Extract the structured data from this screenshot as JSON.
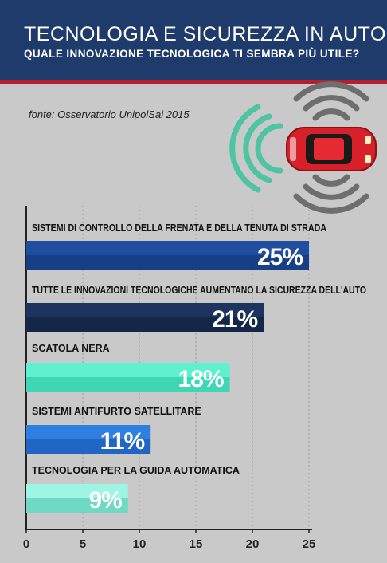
{
  "header": {
    "title": "TECNOLOGIA E SICUREZZA IN AUTO",
    "subtitle": "QUALE INNOVAZIONE TECNOLOGICA TI SEMBRA PIÙ UTILE?"
  },
  "source": "fonte: Osservatorio UnipolSai 2015",
  "colors": {
    "header_bg": "#1e3b6b",
    "accent_red": "#b5202e",
    "background": "#c9c9c9"
  },
  "illustration": {
    "icon": "car-sensor-waves-icon"
  },
  "chart_data": {
    "type": "bar",
    "orientation": "horizontal",
    "title": "",
    "xlabel": "",
    "ylabel": "",
    "categories": [
      "SISTEMI DI CONTROLLO DELLA FRENATA E DELLA TENUTA DI STRADA",
      "TUTTE LE INNOVAZIONI TECNOLOGICHE AUMENTANO LA SICUREZZA DELL'AUTO",
      "SCATOLA NERA",
      "SISTEMI ANTIFURTO SATELLITARE",
      "TECNOLOGIA PER LA GUIDA AUTOMATICA"
    ],
    "values": [
      25,
      21,
      18,
      11,
      9
    ],
    "value_labels": [
      "25%",
      "21%",
      "18%",
      "11%",
      "9%"
    ],
    "bar_colors": [
      [
        "#1f4e9e",
        "#173f85"
      ],
      [
        "#1d3461",
        "#142747"
      ],
      [
        "#5ff0cf",
        "#3fd6b6"
      ],
      [
        "#2f7fe0",
        "#2166c4"
      ],
      [
        "#9ef5e2",
        "#6fd9c3"
      ]
    ],
    "xlim": [
      0,
      25
    ],
    "xticks": [
      "0",
      "5",
      "10",
      "15",
      "20",
      "25"
    ],
    "grid": true
  }
}
